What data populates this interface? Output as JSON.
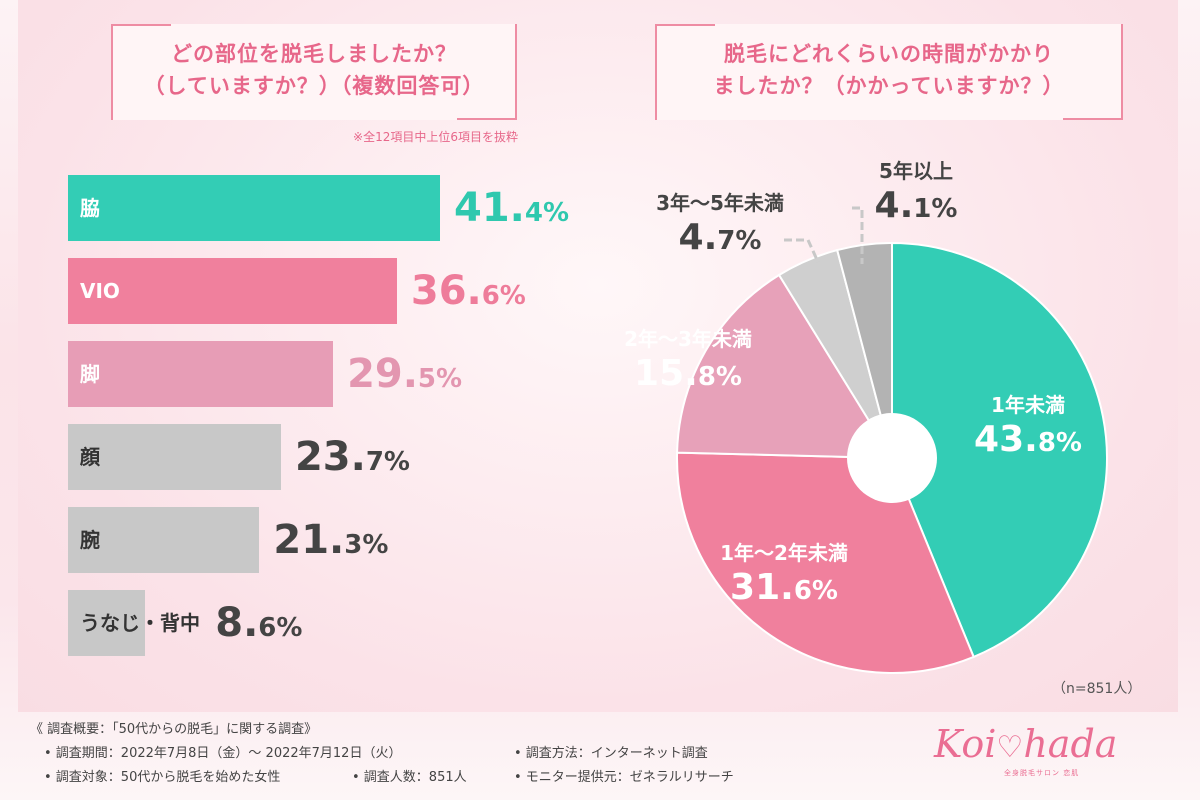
{
  "question1": {
    "line1": "どの部位を脱毛しましたか？",
    "line2": "（していますか？）（複数回答可）"
  },
  "question2": {
    "line1": "脱毛にどれくらいの時間がかかり",
    "line2": "ましたか？（かかっていますか？）"
  },
  "note": "※全12項目中上位6項目を抜粋",
  "sample_size": "（n=851人）",
  "chart_data": [
    {
      "type": "bar",
      "categories": [
        "脇",
        "VIO",
        "脚",
        "顔",
        "腕",
        "うなじ・背中"
      ],
      "values": [
        41.4,
        36.6,
        29.5,
        23.7,
        21.3,
        8.6
      ],
      "value_labels": [
        {
          "num": "41.",
          "dec": "4%"
        },
        {
          "num": "36.",
          "dec": "6%"
        },
        {
          "num": "29.",
          "dec": "5%"
        },
        {
          "num": "23.",
          "dec": "7%"
        },
        {
          "num": "21.",
          "dec": "3%"
        },
        {
          "num": "8.",
          "dec": "6%"
        }
      ],
      "colors": [
        "#33cdb5",
        "#f0809d",
        "#e79db6",
        "#c8c8c8",
        "#c8c8c8",
        "#c8c8c8"
      ],
      "value_colors": [
        "#2fc8ae",
        "#ee7c9a",
        "#e396b0",
        "#444444",
        "#444444",
        "#444444"
      ],
      "label_colors": [
        "#ffffff",
        "#ffffff",
        "#ffffff",
        "#333333",
        "#333333",
        "#333333"
      ]
    },
    {
      "type": "pie",
      "categories": [
        "1年未満",
        "1年〜2年未満",
        "2年〜3年未満",
        "3年〜5年未満",
        "5年以上"
      ],
      "values": [
        43.8,
        31.6,
        15.8,
        4.7,
        4.1
      ],
      "value_labels": [
        {
          "num": "43.",
          "dec": "8%"
        },
        {
          "num": "31.",
          "dec": "6%"
        },
        {
          "num": "15.",
          "dec": "8%"
        },
        {
          "num": "4.",
          "dec": "7%"
        },
        {
          "num": "4.",
          "dec": "1%"
        }
      ],
      "colors": [
        "#33cdb5",
        "#f0809d",
        "#e7a1b9",
        "#cfcfcf",
        "#b3b3b3"
      ],
      "label_colors": [
        "#ffffff",
        "#ffffff",
        "#ffffff",
        "#444444",
        "#444444"
      ]
    }
  ],
  "footer": {
    "title": "《 調査概要：「50代からの脱毛」に関する調査》",
    "period": "• 調査期間：2022年7月8日（金）〜 2022年7月12日（火）",
    "method": "• 調査方法：インターネット調査",
    "target": "• 調査対象：50代から脱毛を始めた女性",
    "count": "• 調査人数：851人",
    "provider": "• モニター提供元：ゼネラルリサーチ"
  },
  "logo": {
    "part1": "Koi",
    "heart": "♡",
    "part2": "hada",
    "sub": "全身脱毛サロン 恋肌"
  }
}
